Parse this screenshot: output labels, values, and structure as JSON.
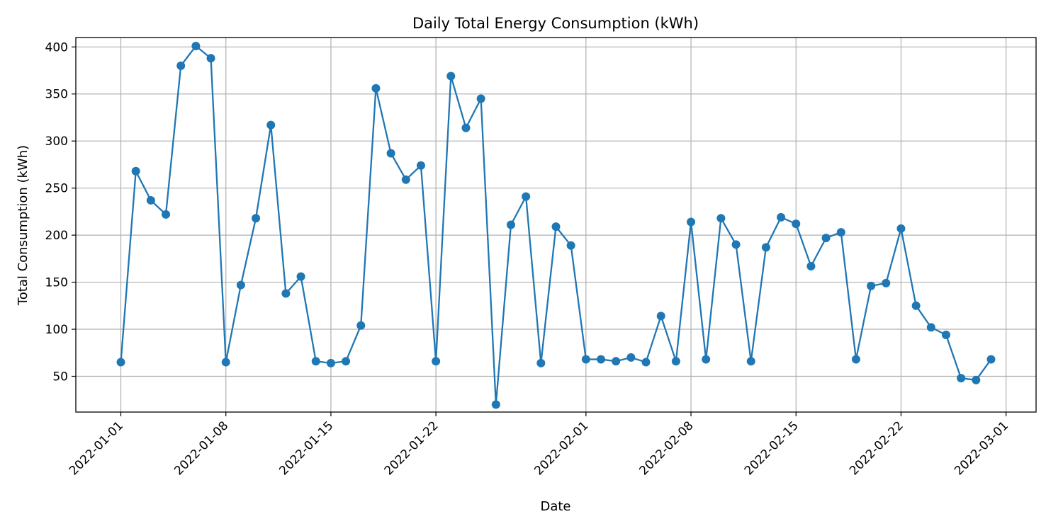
{
  "chart_data": {
    "type": "line",
    "title": "Daily Total Energy Consumption (kWh)",
    "xlabel": "Date",
    "ylabel": "Total Consumption (kWh)",
    "x_start": "2022-01-01",
    "xlim": [
      "2021-12-29",
      "2022-03-03"
    ],
    "ylim": [
      12,
      410
    ],
    "x_ticks": [
      "2022-01-01",
      "2022-01-08",
      "2022-01-15",
      "2022-01-22",
      "2022-02-01",
      "2022-02-08",
      "2022-02-15",
      "2022-02-22",
      "2022-03-01"
    ],
    "y_ticks": [
      50,
      100,
      150,
      200,
      250,
      300,
      350,
      400
    ],
    "grid": true,
    "color": "#1f77b4",
    "series": [
      {
        "name": "",
        "x": [
          "2022-01-01",
          "2022-01-02",
          "2022-01-03",
          "2022-01-04",
          "2022-01-05",
          "2022-01-06",
          "2022-01-07",
          "2022-01-08",
          "2022-01-09",
          "2022-01-10",
          "2022-01-11",
          "2022-01-12",
          "2022-01-13",
          "2022-01-14",
          "2022-01-15",
          "2022-01-16",
          "2022-01-17",
          "2022-01-18",
          "2022-01-19",
          "2022-01-20",
          "2022-01-21",
          "2022-01-22",
          "2022-01-23",
          "2022-01-24",
          "2022-01-25",
          "2022-01-26",
          "2022-01-27",
          "2022-01-28",
          "2022-01-29",
          "2022-01-30",
          "2022-01-31",
          "2022-02-01",
          "2022-02-02",
          "2022-02-03",
          "2022-02-04",
          "2022-02-05",
          "2022-02-06",
          "2022-02-07",
          "2022-02-08",
          "2022-02-09",
          "2022-02-10",
          "2022-02-11",
          "2022-02-12",
          "2022-02-13",
          "2022-02-14",
          "2022-02-15",
          "2022-02-16",
          "2022-02-17",
          "2022-02-18",
          "2022-02-19",
          "2022-02-20",
          "2022-02-21",
          "2022-02-22",
          "2022-02-23",
          "2022-02-24",
          "2022-02-25",
          "2022-02-26",
          "2022-02-27",
          "2022-02-28"
        ],
        "values": [
          65,
          268,
          237,
          222,
          380,
          401,
          388,
          65,
          147,
          218,
          317,
          138,
          156,
          66,
          64,
          66,
          104,
          356,
          287,
          259,
          274,
          66,
          369,
          314,
          345,
          20,
          211,
          241,
          64,
          209,
          189,
          68,
          68,
          66,
          70,
          65,
          114,
          66,
          214,
          68,
          218,
          190,
          66,
          187,
          219,
          212,
          167,
          197,
          203,
          68,
          146,
          149,
          207,
          125,
          102,
          94,
          48,
          46,
          68
        ]
      }
    ]
  }
}
